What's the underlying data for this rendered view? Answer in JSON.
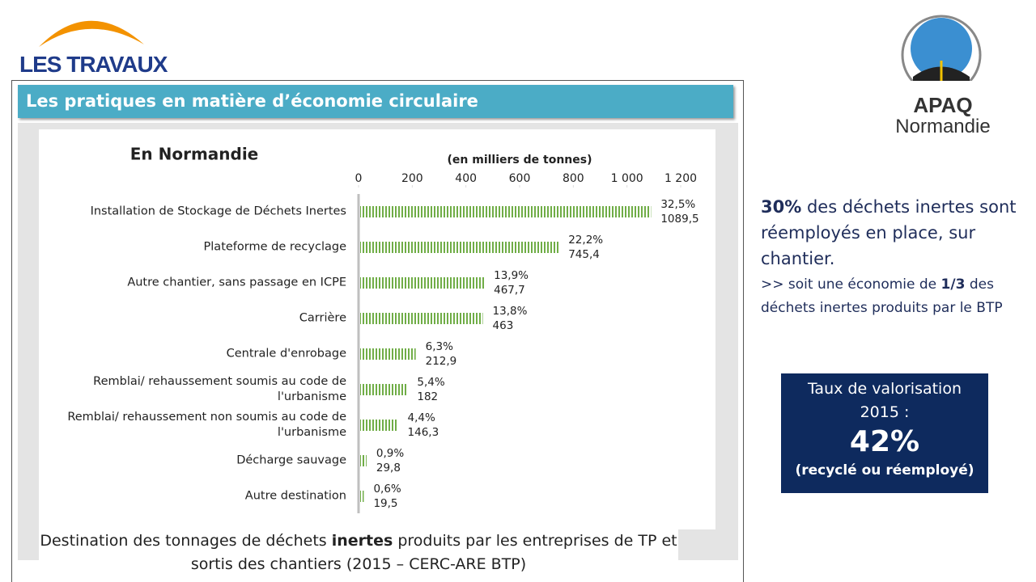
{
  "header": {
    "brand": "LES TRAVAUX",
    "title": "Les pratiques en matière d’économie circulaire"
  },
  "logo": {
    "name": "APAQ",
    "region": "Normandie"
  },
  "chart_data": {
    "type": "bar",
    "orientation": "horizontal",
    "title": "En Normandie",
    "subtitle": "(en milliers de tonnes)",
    "categories": [
      "Installation de Stockage de Déchets Inertes",
      "Plateforme de recyclage",
      "Autre chantier, sans passage en ICPE",
      "Carrière",
      "Centrale d'enrobage",
      "Remblai/ rehaussement soumis au code de l'urbanisme",
      "Remblai/ rehaussement non soumis au code de l'urbanisme",
      "Décharge sauvage",
      "Autre destination"
    ],
    "values": [
      1089.5,
      745.4,
      467.7,
      463,
      212.9,
      182,
      146.3,
      29.8,
      19.5
    ],
    "value_labels": [
      "1089,5",
      "745,4",
      "467,7",
      "463",
      "212,9",
      "182",
      "146,3",
      "29,8",
      "19,5"
    ],
    "shares": [
      32.5,
      22.2,
      13.9,
      13.8,
      6.3,
      5.4,
      4.4,
      0.9,
      0.6
    ],
    "share_labels": [
      "32,5%",
      "22,2%",
      "13,9%",
      "13,8%",
      "6,3%",
      "5,4%",
      "4,4%",
      "0,9%",
      "0,6%"
    ],
    "xlim": [
      0,
      1200
    ],
    "xticks": [
      0,
      200,
      400,
      600,
      800,
      {
        "value": 1000,
        "label": "1 000"
      },
      {
        "value": 1200,
        "label": "1 200"
      }
    ],
    "color": "#70ad47",
    "caption": [
      "Destination des tonnages de déchets ",
      "inertes",
      " produits par les entreprises de TP et sortis des chantiers (2015 – CERC-ARE BTP)"
    ]
  },
  "note": {
    "para1": [
      "30%",
      " des déchets inertes sont réemployés en place, sur chantier."
    ],
    "para2": [
      ">> soit une économie de ",
      "1/3",
      " des déchets inertes produits par le BTP"
    ]
  },
  "kpi": {
    "label": "Taux de valorisation 2015 :",
    "value": "42%",
    "note": "(recyclé ou réemployé)"
  }
}
